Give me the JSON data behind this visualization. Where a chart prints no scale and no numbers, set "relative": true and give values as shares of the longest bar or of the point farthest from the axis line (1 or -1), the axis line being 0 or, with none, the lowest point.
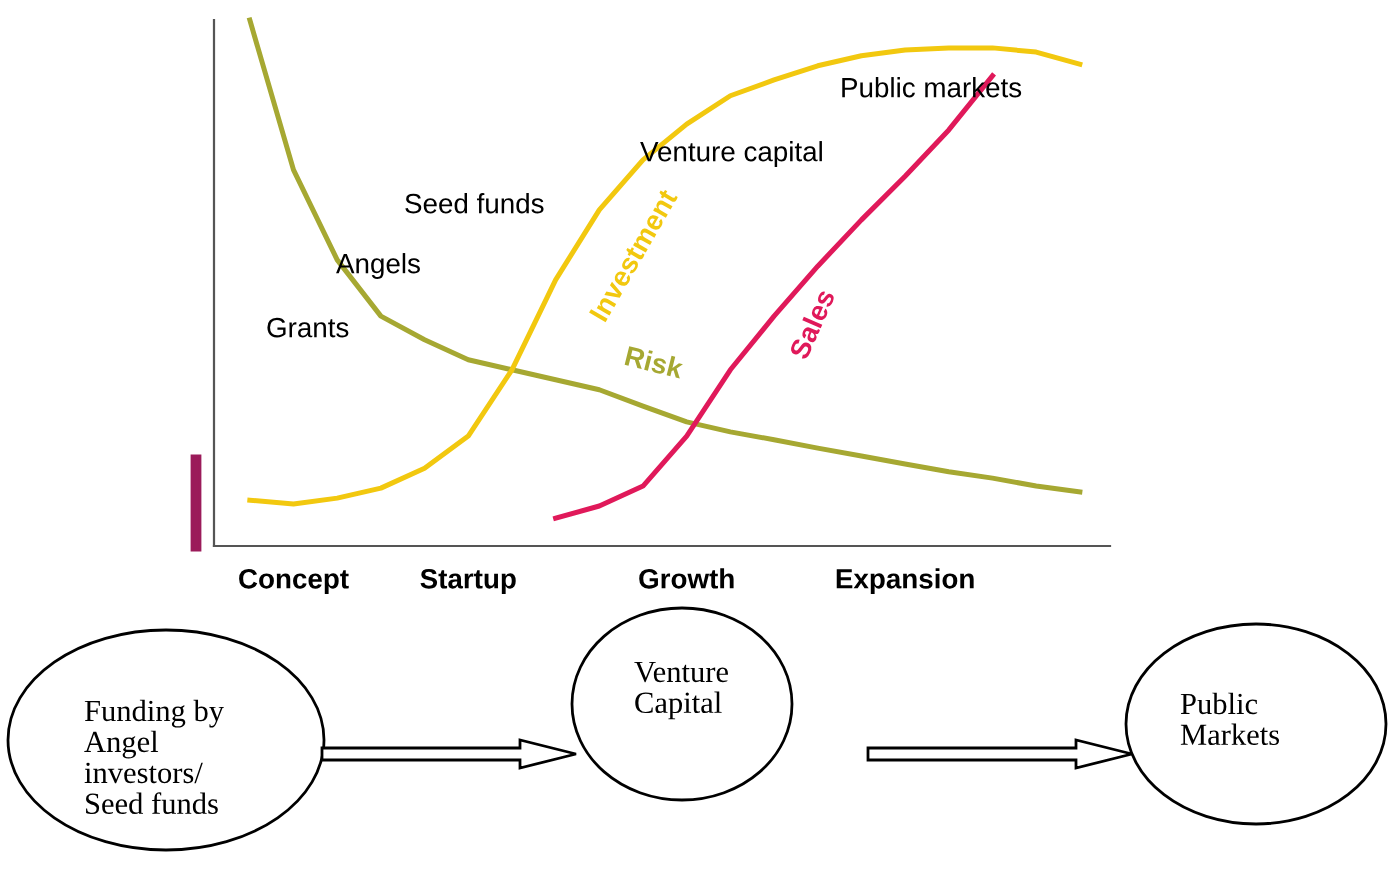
{
  "chart_data": {
    "type": "line",
    "relative": true,
    "categories": [
      null,
      "Concept",
      null,
      null,
      null,
      "Startup",
      null,
      null,
      null,
      null,
      "Growth",
      null,
      null,
      null,
      null,
      "Expansion",
      null,
      null,
      null,
      null
    ],
    "series": [
      {
        "name": "Risk",
        "color": "#a6a832",
        "values": [
          1.0,
          0.715,
          0.544,
          0.437,
          0.392,
          0.354,
          0.335,
          0.316,
          0.297,
          0.266,
          0.236,
          0.217,
          0.202,
          0.186,
          0.171,
          0.156,
          0.141,
          0.129,
          0.114,
          0.103
        ]
      },
      {
        "name": "Investment",
        "color": "#f2c80f",
        "values": [
          0.087,
          0.08,
          0.091,
          0.11,
          0.148,
          0.209,
          0.335,
          0.506,
          0.639,
          0.734,
          0.802,
          0.856,
          0.886,
          0.913,
          0.932,
          0.943,
          0.947,
          0.947,
          0.939,
          0.916
        ]
      },
      {
        "name": "Sales",
        "color": "#e0195a",
        "values": [
          null,
          null,
          null,
          null,
          null,
          null,
          null,
          0.053,
          0.076,
          0.114,
          0.209,
          0.335,
          0.437,
          0.532,
          0.62,
          0.703,
          0.791,
          0.894,
          null,
          null
        ]
      }
    ],
    "annotations": [
      "Grants",
      "Angels",
      "Seed funds",
      "Venture capital",
      "Public markets",
      "Funding by\nAngel\ninvestors/\nSeed funds",
      "Venture\nCapital",
      "Public\nMarkets"
    ]
  }
}
